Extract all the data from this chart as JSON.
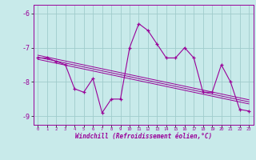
{
  "x": [
    0,
    1,
    2,
    3,
    4,
    5,
    6,
    7,
    8,
    9,
    10,
    11,
    12,
    13,
    14,
    15,
    16,
    17,
    18,
    19,
    20,
    21,
    22,
    23
  ],
  "y": [
    -7.3,
    -7.3,
    -7.4,
    -7.5,
    -8.2,
    -8.3,
    -7.9,
    -8.9,
    -8.5,
    -8.5,
    -7.0,
    -6.3,
    -6.5,
    -6.9,
    -7.3,
    -7.3,
    -7.0,
    -7.3,
    -8.3,
    -8.3,
    -7.5,
    -8.0,
    -8.8,
    -8.85
  ],
  "trend_lines": [
    {
      "x": [
        0,
        23
      ],
      "y": [
        -7.22,
        -8.52
      ]
    },
    {
      "x": [
        0,
        23
      ],
      "y": [
        -7.28,
        -8.58
      ]
    },
    {
      "x": [
        0,
        23
      ],
      "y": [
        -7.34,
        -8.64
      ]
    }
  ],
  "line_color": "#990099",
  "bg_color": "#c8eaea",
  "grid_color": "#a0cccc",
  "xlabel": "Windchill (Refroidissement éolien,°C)",
  "ylim": [
    -9.25,
    -5.75
  ],
  "xlim": [
    -0.5,
    23.5
  ],
  "yticks": [
    -9,
    -8,
    -7,
    -6
  ],
  "xticks": [
    0,
    1,
    2,
    3,
    4,
    5,
    6,
    7,
    8,
    9,
    10,
    11,
    12,
    13,
    14,
    15,
    16,
    17,
    18,
    19,
    20,
    21,
    22,
    23
  ]
}
